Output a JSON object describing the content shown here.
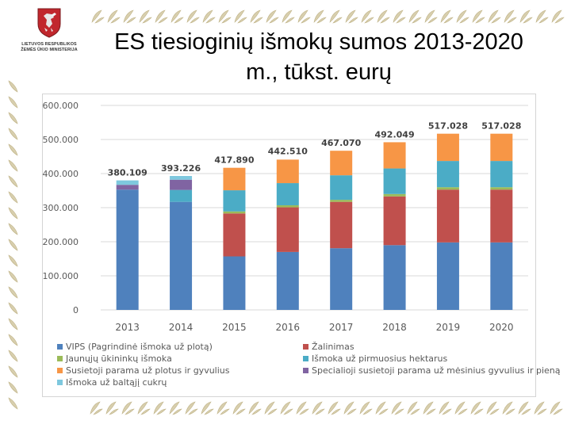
{
  "logo": {
    "line1": "LIETUVOS RESPUBLIKOS",
    "line2": "ŽEMĖS ŪKIO MINISTERIJA"
  },
  "title": {
    "line1": "ES tiesioginių išmokų sumos 2013-2020",
    "line2": "m., tūkst. eurų"
  },
  "chart_data": {
    "type": "bar",
    "stacked": true,
    "title": "ES tiesioginių išmokų sumos 2013-2020 m., tūkst. eurų",
    "xlabel": "",
    "ylabel": "",
    "ylim": [
      0,
      600
    ],
    "grid": true,
    "legend_position": "bottom",
    "yticks": [
      0,
      100,
      200,
      300,
      400,
      500,
      600
    ],
    "ytick_labels": [
      "0",
      "100.000",
      "200.000",
      "300.000",
      "400.000",
      "500.000",
      "600.000"
    ],
    "categories": [
      "2013",
      "2014",
      "2015",
      "2016",
      "2017",
      "2018",
      "2019",
      "2020"
    ],
    "series": [
      {
        "name": "VIPS (Pagrindinė išmoka už plotą)",
        "color": "#4f81bd",
        "values": [
          353,
          317,
          157,
          170,
          181,
          190,
          198,
          198
        ]
      },
      {
        "name": "Žalinimas",
        "color": "#c0504d",
        "values": [
          0,
          0,
          126,
          131,
          136,
          143,
          155,
          155
        ]
      },
      {
        "name": "Jaunųjų ūkininkų išmoka",
        "color": "#9bbb59",
        "values": [
          0,
          0,
          6,
          6,
          6,
          7,
          7,
          7
        ]
      },
      {
        "name": "Išmoka už pirmuosius hektarus",
        "color": "#4bacc6",
        "values": [
          0,
          35,
          62,
          65,
          72,
          75,
          77,
          77
        ]
      },
      {
        "name": "Susietoji parama už plotus ir gyvulius",
        "color": "#f79646",
        "values": [
          0,
          0,
          66,
          69,
          72,
          77,
          80,
          80
        ]
      },
      {
        "name": "Specialioji susietoji parama už mėsinius gyvulius ir pieną",
        "color": "#8064a2",
        "values": [
          14,
          30,
          0,
          0,
          0,
          0,
          0,
          0
        ]
      },
      {
        "name": "Išmoka už baltąjį cukrų",
        "color": "#7ec8de",
        "values": [
          13,
          11,
          0,
          0,
          0,
          0,
          0,
          0
        ]
      }
    ],
    "totals": [
      380.109,
      393.226,
      417.89,
      442.51,
      467.07,
      492.049,
      517.028,
      517.028
    ],
    "total_labels": [
      "380.109",
      "393.226",
      "417.890",
      "442.510",
      "467.070",
      "492.049",
      "517.028",
      "517.028"
    ]
  }
}
